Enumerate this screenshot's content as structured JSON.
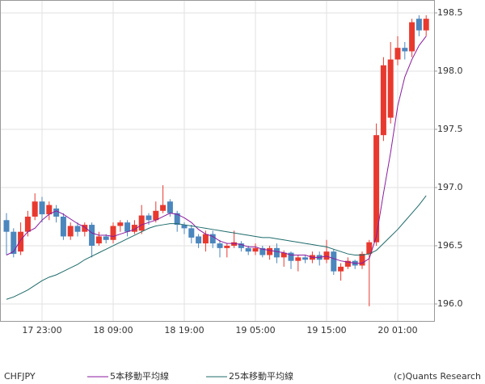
{
  "chart_data": {
    "type": "candlestick",
    "symbol": "CHFJPY",
    "credit": "(c)Quants Research",
    "categories": [
      null,
      null,
      null,
      null,
      null,
      "17 23:00",
      null,
      null,
      null,
      null,
      null,
      null,
      null,
      null,
      null,
      "18 09:00",
      null,
      null,
      null,
      null,
      null,
      null,
      null,
      null,
      null,
      "18 19:00",
      null,
      null,
      null,
      null,
      null,
      null,
      null,
      null,
      null,
      "19 05:00",
      null,
      null,
      null,
      null,
      null,
      null,
      null,
      null,
      null,
      "19 15:00",
      null,
      null,
      null,
      null,
      null,
      null,
      null,
      null,
      null,
      "20 01:00",
      null,
      null,
      null,
      null
    ],
    "open": [
      196.72,
      196.62,
      196.45,
      196.62,
      196.75,
      196.88,
      196.77,
      196.82,
      196.75,
      196.58,
      196.67,
      196.62,
      196.68,
      196.52,
      196.58,
      196.55,
      196.67,
      196.7,
      196.62,
      196.63,
      196.76,
      196.72,
      196.8,
      196.88,
      196.78,
      196.68,
      196.65,
      196.58,
      196.52,
      196.6,
      196.52,
      196.48,
      196.5,
      196.52,
      196.48,
      196.45,
      196.48,
      196.42,
      196.48,
      196.4,
      196.44,
      196.37,
      196.4,
      196.38,
      196.42,
      196.38,
      196.45,
      196.28,
      196.32,
      196.37,
      196.33,
      196.43,
      196.53,
      197.45,
      197.6,
      198.1,
      198.2,
      198.17,
      198.45,
      198.35
    ],
    "high": [
      196.78,
      196.65,
      196.7,
      196.8,
      196.95,
      196.92,
      196.88,
      196.85,
      196.78,
      196.7,
      196.7,
      196.7,
      196.7,
      196.62,
      196.6,
      196.7,
      196.72,
      196.72,
      196.72,
      196.85,
      196.78,
      196.88,
      197.02,
      196.9,
      196.8,
      196.7,
      196.68,
      196.6,
      196.63,
      196.63,
      196.55,
      196.52,
      196.63,
      196.54,
      196.5,
      196.52,
      196.5,
      196.5,
      196.52,
      196.46,
      196.45,
      196.42,
      196.42,
      196.45,
      196.45,
      196.55,
      196.47,
      196.35,
      196.4,
      196.38,
      196.45,
      196.55,
      197.55,
      198.12,
      198.25,
      198.3,
      198.25,
      198.45,
      198.48,
      198.48
    ],
    "low": [
      196.42,
      196.4,
      196.42,
      196.58,
      196.72,
      196.7,
      196.72,
      196.7,
      196.55,
      196.55,
      196.58,
      196.58,
      196.4,
      196.5,
      196.52,
      196.52,
      196.62,
      196.58,
      196.6,
      196.6,
      196.68,
      196.7,
      196.78,
      196.75,
      196.62,
      196.6,
      196.52,
      196.48,
      196.45,
      196.48,
      196.4,
      196.4,
      196.48,
      196.45,
      196.42,
      196.42,
      196.4,
      196.38,
      196.35,
      196.32,
      196.3,
      196.28,
      196.35,
      196.35,
      196.33,
      196.35,
      196.25,
      196.2,
      196.3,
      196.3,
      196.3,
      195.98,
      196.5,
      197.4,
      197.55,
      198.05,
      198.1,
      198.12,
      198.3,
      198.3
    ],
    "close": [
      196.62,
      196.43,
      196.62,
      196.75,
      196.88,
      196.77,
      196.85,
      196.75,
      196.58,
      196.67,
      196.62,
      196.68,
      196.5,
      196.58,
      196.55,
      196.67,
      196.7,
      196.62,
      196.68,
      196.76,
      196.72,
      196.8,
      196.85,
      196.78,
      196.68,
      196.65,
      196.57,
      196.52,
      196.6,
      196.52,
      196.48,
      196.5,
      196.53,
      196.48,
      196.45,
      196.48,
      196.42,
      196.48,
      196.4,
      196.44,
      196.37,
      196.4,
      196.38,
      196.42,
      196.38,
      196.45,
      196.28,
      196.32,
      196.37,
      196.33,
      196.43,
      196.53,
      197.45,
      198.05,
      198.1,
      198.2,
      198.17,
      198.42,
      198.35,
      198.45
    ],
    "up_color": "#e8392f",
    "down_color": "#4b86bd",
    "series": [
      {
        "name": "5本移動平均線",
        "color": "#8a1a9e",
        "values": [
          196.42,
          196.45,
          196.55,
          196.62,
          196.65,
          196.72,
          196.77,
          196.8,
          196.77,
          196.73,
          196.69,
          196.66,
          196.61,
          196.59,
          196.59,
          196.58,
          196.6,
          196.62,
          196.64,
          196.68,
          196.7,
          196.72,
          196.75,
          196.78,
          196.77,
          196.74,
          196.7,
          196.64,
          196.6,
          196.58,
          196.54,
          196.52,
          196.52,
          196.51,
          196.49,
          196.49,
          196.47,
          196.46,
          196.45,
          196.44,
          196.42,
          196.42,
          196.42,
          196.4,
          196.4,
          196.41,
          196.39,
          196.37,
          196.36,
          196.35,
          196.35,
          196.39,
          196.58,
          196.95,
          197.3,
          197.7,
          197.95,
          198.1,
          198.22,
          198.3
        ]
      },
      {
        "name": "25本移動平均線",
        "color": "#1f6b6b",
        "values": [
          196.04,
          196.06,
          196.09,
          196.12,
          196.16,
          196.2,
          196.23,
          196.25,
          196.28,
          196.31,
          196.34,
          196.38,
          196.41,
          196.44,
          196.47,
          196.5,
          196.53,
          196.56,
          196.59,
          196.62,
          196.65,
          196.67,
          196.68,
          196.69,
          196.69,
          196.68,
          196.67,
          196.66,
          196.65,
          196.64,
          196.63,
          196.62,
          196.61,
          196.6,
          196.59,
          196.58,
          196.57,
          196.57,
          196.56,
          196.55,
          196.54,
          196.53,
          196.52,
          196.51,
          196.5,
          196.49,
          196.47,
          196.45,
          196.43,
          196.42,
          196.42,
          196.43,
          196.46,
          196.52,
          196.58,
          196.64,
          196.71,
          196.78,
          196.85,
          196.93
        ]
      }
    ],
    "ylim": [
      195.854,
      198.611
    ],
    "yticks": [
      {
        "value": 196.0,
        "label": "196.0"
      },
      {
        "value": 196.5,
        "label": "196.5"
      },
      {
        "value": 197.0,
        "label": "197.0"
      },
      {
        "value": 197.5,
        "label": "197.5"
      },
      {
        "value": 198.0,
        "label": "198.0"
      },
      {
        "value": 198.5,
        "label": "198.5"
      }
    ],
    "grid": true
  }
}
